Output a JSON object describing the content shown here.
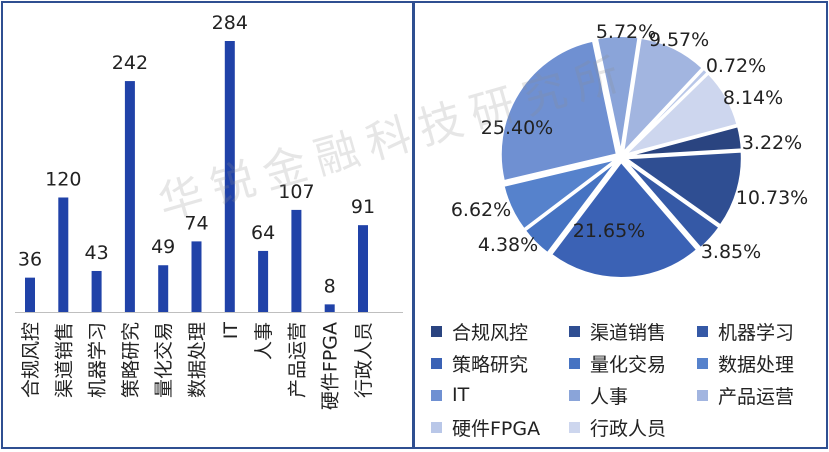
{
  "chart_data": [
    {
      "type": "bar",
      "categories": [
        "合规风控",
        "渠道销售",
        "机器学习",
        "策略研究",
        "量化交易",
        "数据处理",
        "IT",
        "人事",
        "产品运营",
        "硬件FPGA",
        "行政人员"
      ],
      "values": [
        36,
        120,
        43,
        242,
        49,
        74,
        284,
        64,
        107,
        8,
        91
      ],
      "data_labels": [
        "36",
        "120",
        "43",
        "242",
        "49",
        "74",
        "284",
        "64",
        "107",
        "8",
        "91"
      ],
      "color": "#2042a8"
    },
    {
      "type": "pie",
      "labels": [
        "合规风控",
        "渠道销售",
        "机器学习",
        "策略研究",
        "量化交易",
        "数据处理",
        "IT",
        "人事",
        "产品运营",
        "硬件FPGA",
        "行政人员"
      ],
      "values": [
        3.22,
        10.73,
        3.85,
        21.65,
        4.38,
        6.62,
        25.4,
        5.72,
        9.57,
        0.72,
        8.14
      ],
      "data_labels": [
        "3.22%",
        "10.73%",
        "3.85%",
        "21.65%",
        "4.38%",
        "6.62%",
        "25.40%",
        "5.72%",
        "9.57%",
        "0.72%",
        "8.14%"
      ],
      "colors": [
        "#2a4480",
        "#2f4e92",
        "#3559a6",
        "#3b62b5",
        "#4673c2",
        "#5682cc",
        "#6f90d2",
        "#8aa4d9",
        "#a2b5e0",
        "#b9c7e8",
        "#cdd6ee"
      ],
      "legend_placement": "bottom"
    }
  ],
  "watermark": "华锐金融科技研究所"
}
